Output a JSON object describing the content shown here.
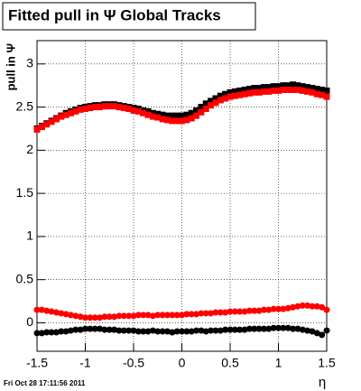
{
  "chart_data": {
    "type": "scatter",
    "title": "Fitted pull in  Ψ   Global Tracks",
    "y_label": "pull in Ψ",
    "x_label": "η",
    "xlim": [
      -1.5,
      1.5
    ],
    "ylim": [
      -0.33,
      3.27
    ],
    "xticks": [
      -1.5,
      -1,
      -0.5,
      0,
      0.5,
      1,
      1.5
    ],
    "yticks": [
      0,
      0.5,
      1,
      1.5,
      2,
      2.5,
      3
    ],
    "grid": true,
    "x": [
      -1.5,
      -1.45,
      -1.4,
      -1.35,
      -1.3,
      -1.25,
      -1.2,
      -1.15,
      -1.1,
      -1.05,
      -1,
      -0.95,
      -0.9,
      -0.85,
      -0.8,
      -0.75,
      -0.7,
      -0.65,
      -0.6,
      -0.55,
      -0.5,
      -0.45,
      -0.4,
      -0.35,
      -0.3,
      -0.25,
      -0.2,
      -0.15,
      -0.1,
      -0.05,
      0,
      0.05,
      0.1,
      0.15,
      0.2,
      0.25,
      0.3,
      0.35,
      0.4,
      0.45,
      0.5,
      0.55,
      0.6,
      0.65,
      0.7,
      0.75,
      0.8,
      0.85,
      0.9,
      0.95,
      1,
      1.05,
      1.1,
      1.15,
      1.2,
      1.25,
      1.3,
      1.35,
      1.4,
      1.45,
      1.5
    ],
    "series": [
      {
        "color": "#000000",
        "marker": "square",
        "values": [
          2.25,
          2.28,
          2.31,
          2.34,
          2.37,
          2.4,
          2.43,
          2.45,
          2.47,
          2.49,
          2.5,
          2.51,
          2.52,
          2.52,
          2.53,
          2.53,
          2.53,
          2.52,
          2.51,
          2.5,
          2.49,
          2.48,
          2.46,
          2.45,
          2.43,
          2.42,
          2.41,
          2.4,
          2.4,
          2.4,
          2.4,
          2.41,
          2.43,
          2.46,
          2.5,
          2.54,
          2.57,
          2.6,
          2.63,
          2.65,
          2.67,
          2.68,
          2.69,
          2.7,
          2.71,
          2.72,
          2.72,
          2.73,
          2.73,
          2.74,
          2.74,
          2.75,
          2.75,
          2.76,
          2.75,
          2.74,
          2.73,
          2.72,
          2.71,
          2.7,
          2.69
        ]
      },
      {
        "color": "#ff0000",
        "marker": "square",
        "values": [
          2.24,
          2.27,
          2.3,
          2.33,
          2.36,
          2.39,
          2.41,
          2.43,
          2.45,
          2.47,
          2.48,
          2.49,
          2.5,
          2.5,
          2.51,
          2.51,
          2.51,
          2.5,
          2.49,
          2.48,
          2.46,
          2.45,
          2.43,
          2.41,
          2.39,
          2.38,
          2.36,
          2.35,
          2.34,
          2.34,
          2.34,
          2.35,
          2.37,
          2.4,
          2.44,
          2.48,
          2.52,
          2.55,
          2.58,
          2.6,
          2.62,
          2.63,
          2.64,
          2.65,
          2.66,
          2.67,
          2.67,
          2.68,
          2.68,
          2.69,
          2.69,
          2.7,
          2.7,
          2.7,
          2.7,
          2.69,
          2.68,
          2.67,
          2.65,
          2.64,
          2.62
        ]
      },
      {
        "color": "#ff0000",
        "marker": "circle",
        "values": [
          0.15,
          0.15,
          0.14,
          0.13,
          0.12,
          0.11,
          0.1,
          0.09,
          0.08,
          0.07,
          0.06,
          0.06,
          0.06,
          0.06,
          0.07,
          0.07,
          0.07,
          0.08,
          0.08,
          0.08,
          0.08,
          0.09,
          0.09,
          0.09,
          0.08,
          0.09,
          0.09,
          0.09,
          0.09,
          0.09,
          0.09,
          0.1,
          0.1,
          0.1,
          0.11,
          0.11,
          0.11,
          0.12,
          0.12,
          0.12,
          0.13,
          0.13,
          0.13,
          0.13,
          0.14,
          0.14,
          0.14,
          0.15,
          0.15,
          0.16,
          0.16,
          0.16,
          0.17,
          0.18,
          0.19,
          0.2,
          0.2,
          0.19,
          0.19,
          0.18,
          0.15
        ]
      },
      {
        "color": "#000000",
        "marker": "circle",
        "values": [
          -0.12,
          -0.12,
          -0.11,
          -0.11,
          -0.11,
          -0.1,
          -0.1,
          -0.09,
          -0.08,
          -0.08,
          -0.07,
          -0.07,
          -0.07,
          -0.07,
          -0.08,
          -0.08,
          -0.08,
          -0.09,
          -0.09,
          -0.09,
          -0.09,
          -0.1,
          -0.1,
          -0.1,
          -0.09,
          -0.1,
          -0.1,
          -0.1,
          -0.11,
          -0.1,
          -0.1,
          -0.1,
          -0.1,
          -0.09,
          -0.09,
          -0.1,
          -0.09,
          -0.09,
          -0.09,
          -0.08,
          -0.08,
          -0.08,
          -0.08,
          -0.08,
          -0.07,
          -0.07,
          -0.07,
          -0.07,
          -0.07,
          -0.06,
          -0.06,
          -0.06,
          -0.06,
          -0.07,
          -0.07,
          -0.08,
          -0.09,
          -0.1,
          -0.12,
          -0.14,
          -0.09
        ]
      }
    ]
  },
  "footer": "Fri Oct 28 17:11:56 2011"
}
